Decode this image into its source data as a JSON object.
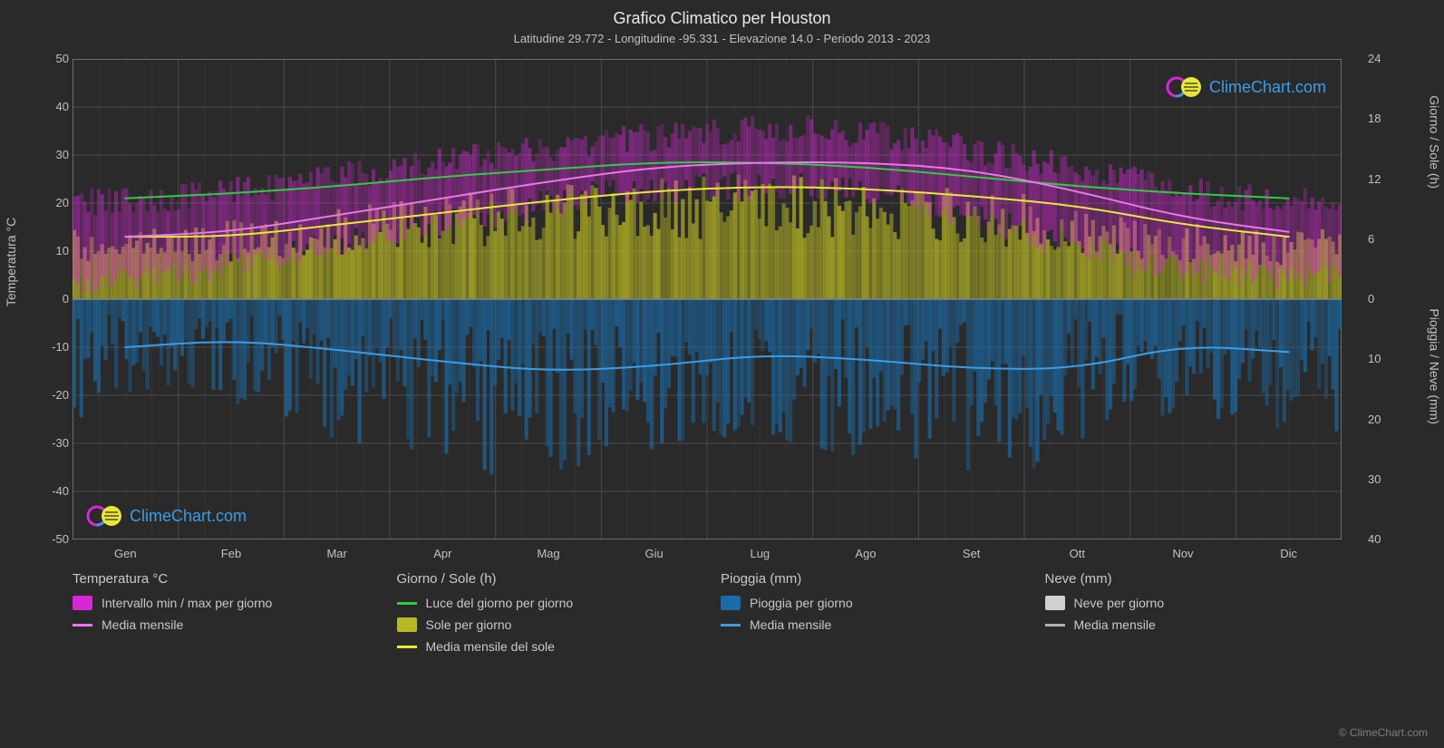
{
  "title": "Grafico Climatico per Houston",
  "subtitle": "Latitudine 29.772 - Longitudine -95.331 - Elevazione 14.0 - Periodo 2013 - 2023",
  "axes": {
    "left_label": "Temperatura °C",
    "right_top_label": "Giorno / Sole (h)",
    "right_bottom_label": "Pioggia / Neve (mm)",
    "y_left_ticks": [
      50,
      40,
      30,
      20,
      10,
      0,
      -10,
      -20,
      -30,
      -40,
      -50
    ],
    "y_right_top_ticks": [
      24,
      18,
      12,
      6,
      0
    ],
    "y_right_bottom_ticks": [
      10,
      20,
      30,
      40
    ],
    "y_left_min": -50,
    "y_left_max": 50,
    "x_labels": [
      "Gen",
      "Feb",
      "Mar",
      "Apr",
      "Mag",
      "Giu",
      "Lug",
      "Ago",
      "Set",
      "Ott",
      "Nov",
      "Dic"
    ]
  },
  "series": {
    "temp_range_color": "#d926d9",
    "temp_mean_color": "#e878e8",
    "daylight_color": "#2ecc40",
    "sun_fill_color": "#b8b824",
    "sun_mean_color": "#e8e838",
    "rain_fill_color": "#1a6ba8",
    "rain_mean_color": "#3b9ce8",
    "snow_fill_color": "#d0d0d0",
    "snow_mean_color": "#b0b0b0",
    "background_color": "#2a2a2a",
    "grid_color": "#4a4a4a",
    "zero_line_color": "#808080",
    "daylight_values": [
      21.0,
      22.0,
      23.5,
      25.5,
      27.0,
      28.5,
      28.5,
      27.5,
      25.5,
      23.5,
      22.0,
      21.0
    ],
    "temp_mean_values": [
      13.0,
      14.0,
      17.5,
      21.0,
      24.5,
      27.5,
      28.5,
      28.5,
      27.0,
      22.5,
      17.0,
      14.0
    ],
    "temp_max_values": [
      20.0,
      21.0,
      24.0,
      27.0,
      30.0,
      33.0,
      35.0,
      35.5,
      33.0,
      29.0,
      25.0,
      21.0
    ],
    "temp_min_values": [
      4.0,
      5.0,
      9.0,
      14.0,
      18.0,
      22.0,
      23.5,
      23.5,
      20.0,
      14.0,
      8.0,
      5.0
    ],
    "sun_mean_values": [
      13.0,
      13.0,
      15.5,
      18.0,
      20.5,
      22.5,
      23.5,
      23.0,
      21.5,
      19.5,
      15.5,
      13.0
    ],
    "sun_daily_max": [
      14.0,
      14.5,
      17.0,
      20.0,
      22.0,
      24.0,
      25.0,
      24.5,
      23.0,
      21.0,
      17.0,
      14.0
    ],
    "rain_mean_values": [
      -10.0,
      -8.5,
      -10.5,
      -13.0,
      -15.0,
      -14.0,
      -11.5,
      -12.5,
      -14.5,
      -14.5,
      -9.5,
      -11.0
    ]
  },
  "legend": {
    "groups": [
      {
        "title": "Temperatura °C",
        "items": [
          {
            "type": "swatch",
            "color": "#d926d9",
            "label": "Intervallo min / max per giorno"
          },
          {
            "type": "line",
            "color": "#e878e8",
            "label": "Media mensile"
          }
        ]
      },
      {
        "title": "Giorno / Sole (h)",
        "items": [
          {
            "type": "line",
            "color": "#2ecc40",
            "label": "Luce del giorno per giorno"
          },
          {
            "type": "swatch",
            "color": "#b8b824",
            "label": "Sole per giorno"
          },
          {
            "type": "line",
            "color": "#e8e838",
            "label": "Media mensile del sole"
          }
        ]
      },
      {
        "title": "Pioggia (mm)",
        "items": [
          {
            "type": "swatch",
            "color": "#1a6ba8",
            "label": "Pioggia per giorno"
          },
          {
            "type": "line",
            "color": "#3b9ce8",
            "label": "Media mensile"
          }
        ]
      },
      {
        "title": "Neve (mm)",
        "items": [
          {
            "type": "swatch",
            "color": "#d0d0d0",
            "label": "Neve per giorno"
          },
          {
            "type": "line",
            "color": "#b0b0b0",
            "label": "Media mensile"
          }
        ]
      }
    ]
  },
  "watermark": {
    "text": "ClimeChart.com",
    "logo_magenta": "#d926d9",
    "logo_cyan": "#3b9ce8",
    "logo_yellow": "#e8e838"
  },
  "copyright": "© ClimeChart.com"
}
